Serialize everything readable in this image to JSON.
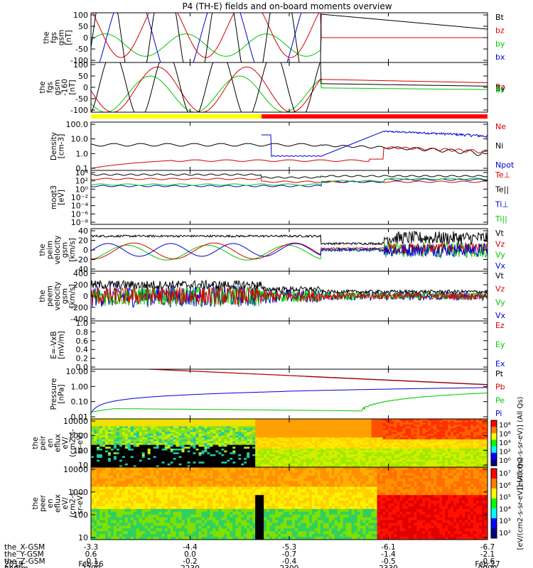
{
  "title": "P4 (TH-E) fields and on-board moments overview",
  "colors": {
    "black": "#000000",
    "red": "#d40000",
    "green": "#00c800",
    "blue": "#0000d0",
    "yellow": "#ffff00",
    "barRed": "#ff0000"
  },
  "chart_data": [
    {
      "type": "line",
      "name": "fgs-gsm",
      "ylabel": [
        "the",
        "fgs",
        "gsm",
        "[nT]"
      ],
      "yticks": [
        "100",
        "50",
        "0",
        "-50",
        "-100"
      ],
      "ylim": [
        -100,
        100
      ],
      "legend": [
        {
          "label": "Bt",
          "color": "#000000"
        },
        {
          "label": "bz",
          "color": "#d40000"
        },
        {
          "label": "by",
          "color": "#00c800"
        },
        {
          "label": "bx",
          "color": "#0000d0"
        }
      ]
    },
    {
      "type": "line",
      "name": "fgs-gsm-160",
      "ylabel": [
        "the",
        "fgs",
        "gsm",
        "-160",
        "[nT]"
      ],
      "yticks": [
        "100",
        "50",
        "0",
        "-50",
        "-100"
      ],
      "ylim": [
        -120,
        100
      ],
      "legend": [
        {
          "label": "Bz",
          "color": "#d40000"
        },
        {
          "label": "By",
          "color": "#000000"
        },
        {
          "label": "Bt",
          "color": "#00c800"
        }
      ]
    },
    {
      "type": "line",
      "name": "density",
      "ylabel": [
        "Density",
        "[cm-3]"
      ],
      "yticks": [
        "100.0",
        "10.0",
        "1.0",
        "0.1"
      ],
      "scale": "log",
      "legend": [
        {
          "label": "Ne",
          "color": "#d40000"
        },
        {
          "label": "Ni",
          "color": "#000000"
        },
        {
          "label": "Npot",
          "color": "#0000d0"
        }
      ]
    },
    {
      "type": "line",
      "name": "moqt3",
      "ylabel": [
        "moqt3",
        "[eV]"
      ],
      "yticks": [
        "10⁴",
        "10²",
        "10⁰",
        "10⁻²",
        "10⁻⁴",
        "10⁻⁶",
        "10⁻⁸"
      ],
      "scale": "log",
      "legend": [
        {
          "label": "Te⊥",
          "color": "#d40000"
        },
        {
          "label": "Te||",
          "color": "#000000"
        },
        {
          "label": "Ti⊥",
          "color": "#0000d0"
        },
        {
          "label": "Ti||",
          "color": "#00c800"
        }
      ]
    },
    {
      "type": "line",
      "name": "peim-velocity",
      "ylabel": [
        "the",
        "peim",
        "velocity",
        "gsm",
        "[km/s]"
      ],
      "yticks": [
        "40",
        "20",
        "0",
        "-20",
        "-40"
      ],
      "ylim": [
        -40,
        40
      ],
      "legend": [
        {
          "label": "Vt",
          "color": "#000000"
        },
        {
          "label": "Vz",
          "color": "#d40000"
        },
        {
          "label": "Vy",
          "color": "#00c800"
        },
        {
          "label": "Vx",
          "color": "#0000d0"
        }
      ]
    },
    {
      "type": "line",
      "name": "peem-velocity",
      "ylabel": [
        "the",
        "peem",
        "velocity",
        "gsm",
        "[km/s]"
      ],
      "yticks": [
        "400",
        "200",
        "0",
        "-200",
        "-400"
      ],
      "ylim": [
        -400,
        400
      ],
      "legend": [
        {
          "label": "Vt",
          "color": "#000000"
        },
        {
          "label": "Vz",
          "color": "#d40000"
        },
        {
          "label": "Vy",
          "color": "#00c800"
        },
        {
          "label": "Vx",
          "color": "#0000d0"
        }
      ]
    },
    {
      "type": "line",
      "name": "e-field",
      "ylabel": [
        "E=-VxB",
        "[mV/m]"
      ],
      "yticks": [
        "1.0",
        "0.8",
        "0.6",
        "0.4",
        "0.2",
        "0.0"
      ],
      "ylim": [
        0,
        1
      ],
      "legend": [
        {
          "label": "Ez",
          "color": "#d40000"
        },
        {
          "label": "Ey",
          "color": "#00c800"
        },
        {
          "label": "Ex",
          "color": "#0000d0"
        }
      ]
    },
    {
      "type": "line",
      "name": "pressure",
      "ylabel": [
        "Pressure",
        "[nPa]"
      ],
      "yticks": [
        "10.00",
        "1.00",
        "0.10",
        "0.01"
      ],
      "scale": "log",
      "legend": [
        {
          "label": "Pt",
          "color": "#000000"
        },
        {
          "label": "Pb",
          "color": "#d40000"
        },
        {
          "label": "Pe",
          "color": "#00c800"
        },
        {
          "label": "Pi",
          "color": "#0000d0"
        }
      ]
    },
    {
      "type": "heatmap",
      "name": "peir-en-eflux",
      "ylabel": [
        "the",
        "peir",
        "en",
        "eflux",
        "eV/",
        "(cm2-s-",
        "sr-eV)"
      ],
      "yticks": [
        "10000",
        "1000",
        "100",
        "10"
      ],
      "colorbar_ticks": [
        "10⁸",
        "10⁶",
        "10⁴",
        "10²",
        "10⁰"
      ],
      "colorbar_label": "[eV/(cm2-s-sr-eV)] (All Qs)"
    },
    {
      "type": "heatmap",
      "name": "peer-en-eflux",
      "ylabel": [
        "the",
        "peer",
        "en",
        "eflux",
        "eV/",
        "(cm2-s-",
        "sr-eV)"
      ],
      "yticks": [
        "10000",
        "1000",
        "100",
        "10"
      ],
      "colorbar_ticks": [
        "10⁷",
        "10⁶",
        "10⁵",
        "10⁴",
        "10³",
        "10²"
      ],
      "colorbar_label": "[eV/(cm2-s-sr-eV)] (All Qs)"
    }
  ],
  "xaxis": {
    "rows": [
      {
        "label": "the_X-GSM",
        "values": [
          "-3.3",
          "-4.4",
          "-5.3",
          "-6.1",
          "-6.7"
        ]
      },
      {
        "label": "the_Y-GSM",
        "values": [
          "0.6",
          "0.0",
          "-0.7",
          "-1.4",
          "-2.1"
        ]
      },
      {
        "label": "the_Z-GSM",
        "values": [
          "-0.1",
          "-0.2",
          "-0.4",
          "-0.5",
          "-0.6"
        ]
      },
      {
        "label": "hhmm",
        "values": [
          "2200",
          "2230",
          "2300",
          "2330",
          "0000"
        ]
      }
    ],
    "year": "2019",
    "date_start": "Feb 26",
    "date_end": "Feb 27"
  }
}
